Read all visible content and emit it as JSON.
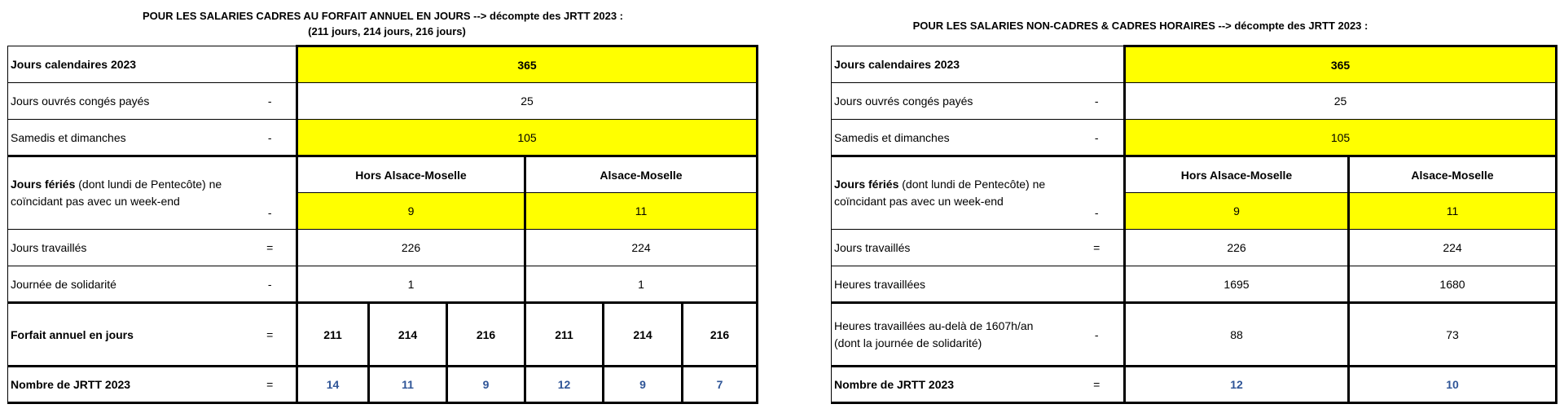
{
  "left": {
    "title_line1": "POUR LES SALARIES CADRES AU FORFAIT ANNUEL EN JOURS --> décompte des JRTT 2023 :",
    "title_line2": "(211 jours, 214 jours, 216 jours)",
    "rows": {
      "calendar": {
        "label": "Jours calendaires 2023",
        "value": "365"
      },
      "conges": {
        "label": "Jours ouvrés congés payés",
        "op": "-",
        "value": "25"
      },
      "weekends": {
        "label": "Samedis et dimanches",
        "op": "-",
        "value": "105"
      },
      "feries": {
        "label_bold": "Jours fériés",
        "label_rest": " (dont lundi de Pentecôte) ne coïncidant pas avec un week-end",
        "op": "-",
        "hdr_hors": "Hors Alsace-Moselle",
        "hdr_alsace": "Alsace-Moselle",
        "val_hors": "9",
        "val_alsace": "11"
      },
      "travailles": {
        "label": "Jours travaillés",
        "op": "=",
        "val_hors": "226",
        "val_alsace": "224"
      },
      "solidarite": {
        "label": "Journée de solidarité",
        "op": "-",
        "val_hors": "1",
        "val_alsace": "1"
      },
      "forfait": {
        "label": "Forfait annuel en jours",
        "op": "=",
        "values": [
          "211",
          "214",
          "216",
          "211",
          "214",
          "216"
        ]
      },
      "jrtt": {
        "label": "Nombre de JRTT 2023",
        "op": "=",
        "values": [
          "14",
          "11",
          "9",
          "12",
          "9",
          "7"
        ]
      }
    }
  },
  "right": {
    "title": "POUR LES SALARIES NON-CADRES & CADRES HORAIRES --> décompte des JRTT 2023 :",
    "rows": {
      "calendar": {
        "label": "Jours calendaires 2023",
        "value": "365"
      },
      "conges": {
        "label": "Jours ouvrés congés payés",
        "op": "-",
        "value": "25"
      },
      "weekends": {
        "label": "Samedis et dimanches",
        "op": "-",
        "value": "105"
      },
      "feries": {
        "label_bold": "Jours fériés",
        "label_rest": " (dont lundi de Pentecôte) ne coïncidant pas avec un week-end",
        "op": "-",
        "hdr_hors": "Hors Alsace-Moselle",
        "hdr_alsace": "Alsace-Moselle",
        "val_hors": "9",
        "val_alsace": "11"
      },
      "travailles": {
        "label": "Jours travaillés",
        "op": "=",
        "val_hors": "226",
        "val_alsace": "224"
      },
      "heures": {
        "label": "Heures travaillées",
        "val_hors": "1695",
        "val_alsace": "1680"
      },
      "heures_dela": {
        "label": "Heures travaillées au-delà de 1607h/an (dont la journée de solidarité)",
        "op": "-",
        "val_hors": "88",
        "val_alsace": "73"
      },
      "jrtt": {
        "label": "Nombre de JRTT 2023",
        "op": "=",
        "val_hors": "12",
        "val_alsace": "10"
      }
    }
  }
}
